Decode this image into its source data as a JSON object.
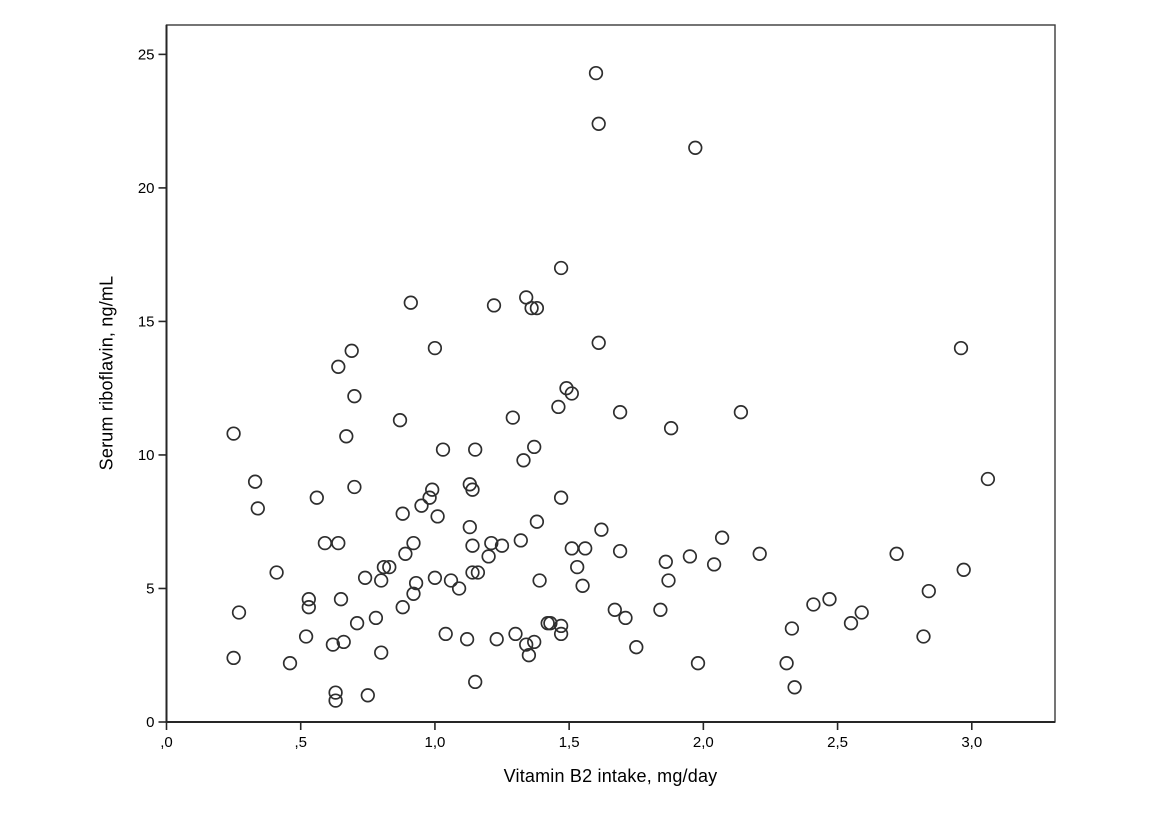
{
  "figure": {
    "background": "#ffffff",
    "marker_color": "#2e2e2e",
    "axis_color": "#262626",
    "frame_color": "#3a3a3a"
  },
  "chart_data": {
    "type": "scatter",
    "title": "",
    "xlabel": "Vitamin B2 intake, mg/day",
    "ylabel": "Serum riboflavin, ng/mL",
    "xlim": [
      0,
      3.31
    ],
    "ylim": [
      0,
      26.1
    ],
    "grid": false,
    "legend": null,
    "marker": "open-circle",
    "x_ticks": {
      "values": [
        0,
        0.5,
        1.0,
        1.5,
        2.0,
        2.5,
        3.0
      ],
      "labels": [
        ",0",
        ",5",
        "1,0",
        "1,5",
        "2,0",
        "2,5",
        "3,0"
      ]
    },
    "y_ticks": {
      "values": [
        0,
        5,
        10,
        15,
        20,
        25
      ],
      "labels": [
        "0",
        "5",
        "10",
        "15",
        "20",
        "25"
      ]
    },
    "points": [
      [
        0.25,
        10.8
      ],
      [
        0.87,
        11.3
      ],
      [
        0.67,
        10.7
      ],
      [
        1.03,
        10.2
      ],
      [
        0.33,
        9.0
      ],
      [
        0.7,
        8.8
      ],
      [
        0.34,
        8.0
      ],
      [
        0.56,
        8.4
      ],
      [
        0.99,
        8.7
      ],
      [
        0.98,
        8.4
      ],
      [
        0.95,
        8.1
      ],
      [
        0.88,
        7.8
      ],
      [
        1.01,
        7.7
      ],
      [
        0.59,
        6.7
      ],
      [
        0.64,
        6.7
      ],
      [
        0.92,
        6.7
      ],
      [
        0.89,
        6.3
      ],
      [
        0.41,
        5.6
      ],
      [
        0.81,
        5.8
      ],
      [
        0.83,
        5.8
      ],
      [
        0.74,
        5.4
      ],
      [
        0.8,
        5.3
      ],
      [
        0.27,
        4.1
      ],
      [
        0.53,
        4.6
      ],
      [
        0.53,
        4.3
      ],
      [
        0.65,
        4.6
      ],
      [
        0.93,
        5.2
      ],
      [
        0.92,
        4.8
      ],
      [
        1.0,
        5.4
      ],
      [
        1.06,
        5.3
      ],
      [
        1.09,
        5.0
      ],
      [
        0.88,
        4.3
      ],
      [
        0.78,
        3.9
      ],
      [
        0.71,
        3.7
      ],
      [
        0.52,
        3.2
      ],
      [
        0.62,
        2.9
      ],
      [
        0.66,
        3.0
      ],
      [
        0.8,
        2.6
      ],
      [
        0.25,
        2.4
      ],
      [
        0.46,
        2.2
      ],
      [
        0.63,
        1.1
      ],
      [
        0.63,
        0.8
      ],
      [
        0.75,
        1.0
      ],
      [
        0.91,
        15.7
      ],
      [
        0.69,
        13.9
      ],
      [
        0.64,
        13.3
      ],
      [
        1.0,
        14.0
      ],
      [
        0.7,
        12.2
      ],
      [
        1.6,
        24.3
      ],
      [
        1.61,
        22.4
      ],
      [
        1.97,
        21.5
      ],
      [
        1.47,
        17.0
      ],
      [
        1.22,
        15.6
      ],
      [
        1.34,
        15.9
      ],
      [
        1.36,
        15.5
      ],
      [
        1.38,
        15.5
      ],
      [
        1.61,
        14.2
      ],
      [
        1.49,
        12.5
      ],
      [
        1.51,
        12.3
      ],
      [
        1.46,
        11.8
      ],
      [
        1.29,
        11.4
      ],
      [
        1.69,
        11.6
      ],
      [
        1.88,
        11.0
      ],
      [
        2.14,
        11.6
      ],
      [
        1.15,
        10.2
      ],
      [
        1.37,
        10.3
      ],
      [
        1.33,
        9.8
      ],
      [
        1.13,
        8.9
      ],
      [
        1.14,
        8.7
      ],
      [
        1.47,
        8.4
      ],
      [
        1.13,
        7.3
      ],
      [
        1.38,
        7.5
      ],
      [
        1.62,
        7.2
      ],
      [
        2.07,
        6.9
      ],
      [
        1.14,
        6.6
      ],
      [
        1.21,
        6.7
      ],
      [
        1.25,
        6.6
      ],
      [
        1.32,
        6.8
      ],
      [
        1.2,
        6.2
      ],
      [
        1.51,
        6.5
      ],
      [
        1.56,
        6.5
      ],
      [
        1.69,
        6.4
      ],
      [
        1.86,
        6.0
      ],
      [
        1.95,
        6.2
      ],
      [
        2.04,
        5.9
      ],
      [
        1.53,
        5.8
      ],
      [
        1.14,
        5.6
      ],
      [
        1.16,
        5.6
      ],
      [
        1.39,
        5.3
      ],
      [
        1.55,
        5.1
      ],
      [
        1.87,
        5.3
      ],
      [
        1.67,
        4.2
      ],
      [
        1.71,
        3.9
      ],
      [
        1.84,
        4.2
      ],
      [
        1.04,
        3.3
      ],
      [
        1.12,
        3.1
      ],
      [
        1.23,
        3.1
      ],
      [
        1.3,
        3.3
      ],
      [
        1.37,
        3.0
      ],
      [
        1.34,
        2.9
      ],
      [
        1.35,
        2.5
      ],
      [
        1.42,
        3.7
      ],
      [
        1.43,
        3.7
      ],
      [
        1.47,
        3.6
      ],
      [
        1.47,
        3.3
      ],
      [
        1.75,
        2.8
      ],
      [
        1.98,
        2.2
      ],
      [
        1.15,
        1.5
      ],
      [
        3.06,
        9.1
      ],
      [
        2.21,
        6.3
      ],
      [
        2.72,
        6.3
      ],
      [
        2.96,
        14.0
      ],
      [
        2.97,
        5.7
      ],
      [
        2.84,
        4.9
      ],
      [
        2.41,
        4.4
      ],
      [
        2.47,
        4.6
      ],
      [
        2.59,
        4.1
      ],
      [
        2.55,
        3.7
      ],
      [
        2.33,
        3.5
      ],
      [
        2.82,
        3.2
      ],
      [
        2.31,
        2.2
      ],
      [
        2.34,
        1.3
      ]
    ]
  }
}
